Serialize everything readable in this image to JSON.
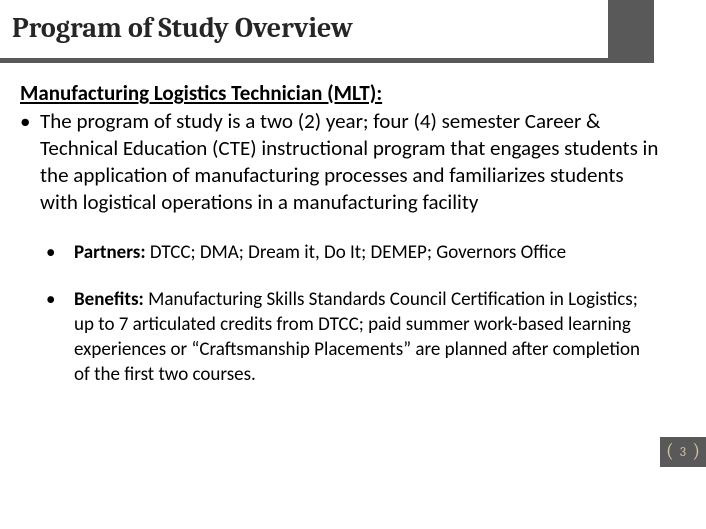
{
  "title": "Program of Study Overview",
  "heading": "Manufacturing Logistics Technician (MLT):",
  "mainBullet": "The program of study is a two (2) year; four (4) semester Career & Technical Education (CTE) instructional program that engages students in the application of manufacturing processes and familiarizes students with logistical operations in a manufacturing facility",
  "sub": [
    {
      "label": "Partners:",
      "text": " DTCC; DMA; Dream it, Do It; DEMEP; Governors Office"
    },
    {
      "label": "Benefits:",
      "text": " Manufacturing Skills Standards Council Certification in Logistics; up to 7 articulated credits from DTCC; paid summer work-based learning experiences or “Craftsmanship Placements” are planned after completion of the first two courses."
    }
  ],
  "pageNumber": "3",
  "colors": {
    "darkGray": "#595959",
    "titleText": "#262626",
    "accent": "#d2c29d",
    "background": "#ffffff"
  }
}
